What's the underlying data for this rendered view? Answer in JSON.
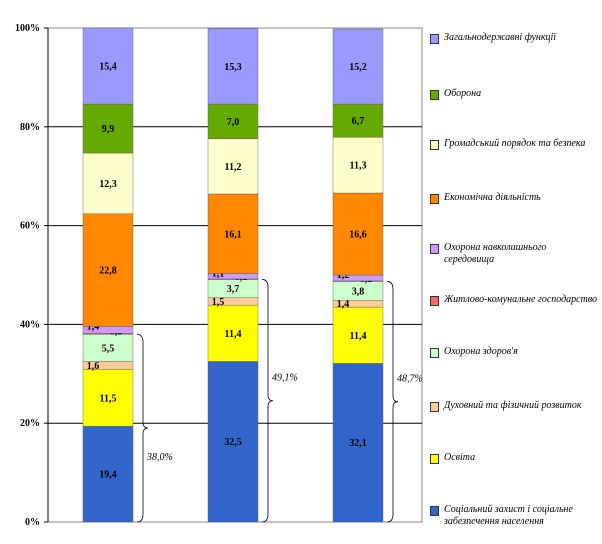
{
  "chart_data": {
    "type": "bar",
    "stacked": true,
    "categories": [
      "",
      "",
      ""
    ],
    "ylim": [
      0,
      100
    ],
    "yticks": [
      "0%",
      "20%",
      "40%",
      "60%",
      "80%",
      "100%"
    ],
    "grid": true,
    "legend_position": "right",
    "series": [
      {
        "name": "Соціальний захист і соціальне забезпечення населення",
        "color": "#3366cc",
        "values": [
          19.4,
          32.5,
          32.1
        ],
        "labels": [
          "19,4",
          "32,5",
          "32,1"
        ]
      },
      {
        "name": "Освіта",
        "color": "#ffff00",
        "values": [
          11.5,
          11.4,
          11.4
        ],
        "labels": [
          "11,5",
          "11,4",
          "11,4"
        ]
      },
      {
        "name": "Духовний та фізичний розвиток",
        "color": "#ffcc99",
        "values": [
          1.6,
          1.5,
          1.4
        ],
        "labels": [
          "1,6",
          "1,5",
          "1,4"
        ]
      },
      {
        "name": "Охорона здоров'я",
        "color": "#ccffcc",
        "values": [
          5.5,
          3.7,
          3.8
        ],
        "labels": [
          "5,5",
          "3,7",
          "3,8"
        ]
      },
      {
        "name": "Житлово-комунальне господарство",
        "color": "#ff6666",
        "values": [
          0.2,
          0.1,
          0.1
        ],
        "labels": [
          "0,2",
          "0,1",
          "0,1"
        ]
      },
      {
        "name": "Охорона навколишнього середовища",
        "color": "#cc99ff",
        "values": [
          1.4,
          1.1,
          1.2
        ],
        "labels": [
          "1,4",
          "1,1",
          "1,2"
        ]
      },
      {
        "name": "Економічна діяльність",
        "color": "#ff8800",
        "values": [
          22.8,
          16.1,
          16.6
        ],
        "labels": [
          "22,8",
          "16,1",
          "16,6"
        ]
      },
      {
        "name": "Громадський порядок та безпека",
        "color": "#ffffcc",
        "values": [
          12.3,
          11.2,
          11.3
        ],
        "labels": [
          "12,3",
          "11,2",
          "11,3"
        ]
      },
      {
        "name": "Оборона",
        "color": "#66aa00",
        "values": [
          9.9,
          7.0,
          6.7
        ],
        "labels": [
          "9,9",
          "7,0",
          "6,7"
        ]
      },
      {
        "name": "Загальнодержавні функції",
        "color": "#9999ff",
        "values": [
          15.4,
          15.3,
          15.2
        ],
        "labels": [
          "15,4",
          "15,3",
          "15,2"
        ]
      }
    ],
    "annotations": [
      "38,0%",
      "49,1%",
      "48,7%"
    ]
  },
  "legend_order": [
    9,
    8,
    7,
    6,
    5,
    4,
    3,
    2,
    1,
    0
  ]
}
